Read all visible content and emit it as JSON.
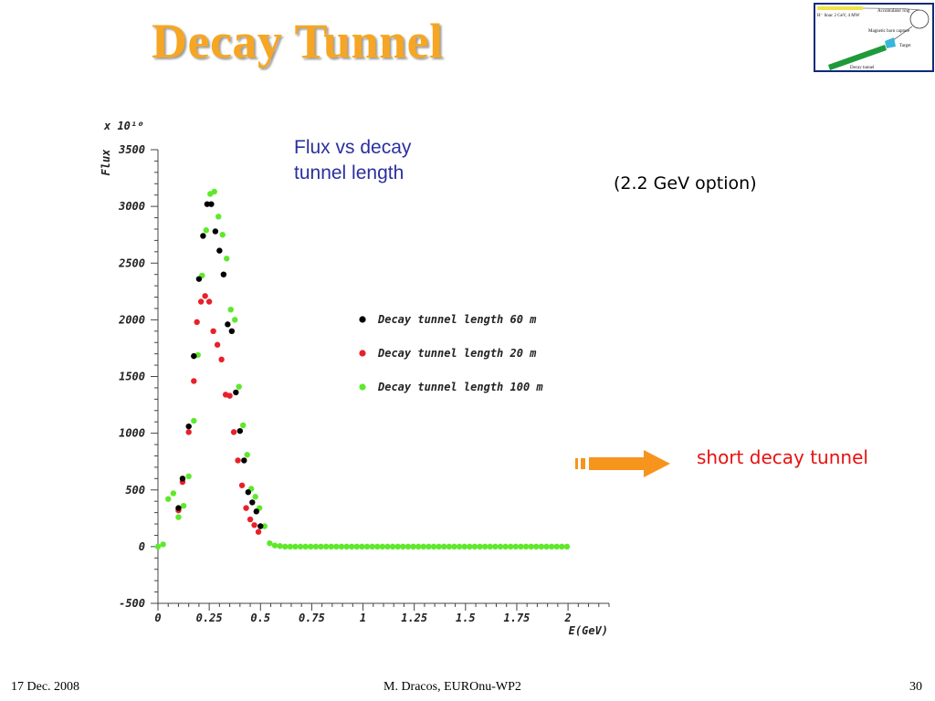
{
  "slide": {
    "title": "Decay Tunnel",
    "flux_note": "Flux vs decay tunnel length",
    "option_note": "(2.2 GeV option)",
    "arrow_label": "short decay tunnel",
    "footer_left": "17 Dec. 2008",
    "footer_center": "M. Dracos, EUROnu-WP2",
    "footer_right": "30"
  },
  "diagram": {
    "linac_label": "H⁻ linac 2 GeV, 4 MW",
    "accumulator_label": "Accumulator ring",
    "horn_label": "Magnetic horn capture",
    "target_label": "Target",
    "tunnel_label": "Decay tunnel"
  },
  "chart_data": {
    "type": "scatter",
    "title": "",
    "xlabel": "E(GeV)",
    "ylabel": "Flux",
    "yscale_label": "x 10¹⁰",
    "xlim": [
      0,
      2.2
    ],
    "ylim": [
      -500,
      3500
    ],
    "xticks": [
      "0",
      "0.25",
      "0.5",
      "0.75",
      "1",
      "1.25",
      "1.5",
      "1.75",
      "2"
    ],
    "yticks": [
      "-500",
      "0",
      "500",
      "1000",
      "1500",
      "2000",
      "2500",
      "3000",
      "3500"
    ],
    "legend_position": "center-right",
    "series": [
      {
        "name": "Decay tunnel length 60 m",
        "color": "#000000",
        "x": [
          0.1,
          0.12,
          0.15,
          0.175,
          0.2,
          0.22,
          0.24,
          0.26,
          0.28,
          0.3,
          0.32,
          0.34,
          0.36,
          0.38,
          0.4,
          0.42,
          0.44,
          0.46,
          0.48,
          0.5
        ],
        "y": [
          340,
          600,
          1060,
          1680,
          2360,
          2740,
          3020,
          3020,
          2780,
          2610,
          2400,
          1960,
          1900,
          1360,
          1020,
          760,
          480,
          390,
          310,
          180
        ]
      },
      {
        "name": "Decay tunnel length 20 m",
        "color": "#e8202a",
        "x": [
          0.1,
          0.12,
          0.15,
          0.175,
          0.19,
          0.21,
          0.23,
          0.25,
          0.27,
          0.29,
          0.31,
          0.33,
          0.35,
          0.37,
          0.39,
          0.41,
          0.43,
          0.45,
          0.47,
          0.49
        ],
        "y": [
          320,
          570,
          1010,
          1460,
          1980,
          2160,
          2210,
          2160,
          1900,
          1780,
          1650,
          1340,
          1330,
          1010,
          760,
          540,
          340,
          240,
          190,
          130
        ]
      },
      {
        "name": "Decay tunnel length 100 m",
        "color": "#5ee82a",
        "x": [
          0.0,
          0.025,
          0.05,
          0.075,
          0.1,
          0.125,
          0.15,
          0.175,
          0.195,
          0.215,
          0.235,
          0.255,
          0.275,
          0.295,
          0.315,
          0.335,
          0.355,
          0.375,
          0.395,
          0.415,
          0.435,
          0.455,
          0.475,
          0.495,
          0.52,
          0.545,
          0.57,
          0.595,
          0.62,
          0.645,
          0.67,
          0.695,
          0.72,
          0.745,
          0.77,
          0.795,
          0.82,
          0.845,
          0.87,
          0.895,
          0.92,
          0.945,
          0.97,
          0.995,
          1.02,
          1.045,
          1.07,
          1.095,
          1.12,
          1.145,
          1.17,
          1.195,
          1.22,
          1.245,
          1.27,
          1.295,
          1.32,
          1.345,
          1.37,
          1.395,
          1.42,
          1.445,
          1.47,
          1.495,
          1.52,
          1.545,
          1.57,
          1.595,
          1.62,
          1.645,
          1.67,
          1.695,
          1.72,
          1.745,
          1.77,
          1.795,
          1.82,
          1.845,
          1.87,
          1.895,
          1.92,
          1.945,
          1.97,
          1.995
        ],
        "y": [
          0,
          20,
          420,
          470,
          260,
          360,
          620,
          1110,
          1690,
          2390,
          2790,
          3110,
          3130,
          2910,
          2750,
          2540,
          2090,
          2000,
          1410,
          1070,
          810,
          510,
          440,
          340,
          180,
          30,
          10,
          5,
          0,
          0,
          0,
          0,
          0,
          0,
          0,
          0,
          0,
          0,
          0,
          0,
          0,
          0,
          0,
          0,
          0,
          0,
          0,
          0,
          0,
          0,
          0,
          0,
          0,
          0,
          0,
          0,
          0,
          0,
          0,
          0,
          0,
          0,
          0,
          0,
          0,
          0,
          0,
          0,
          0,
          0,
          0,
          0,
          0,
          0,
          0,
          0,
          0,
          0,
          0,
          0,
          0,
          0,
          0,
          0
        ]
      }
    ]
  }
}
